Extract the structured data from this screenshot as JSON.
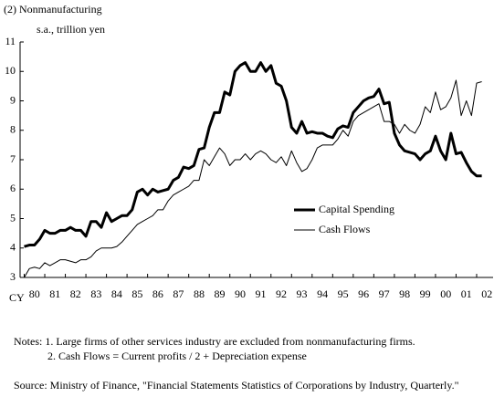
{
  "chart_data": {
    "type": "line",
    "title": "(2) Nonmanufacturing",
    "y_label": "s.a., trillion yen",
    "x_label": "CY",
    "x": [
      1980,
      1980.25,
      1980.5,
      1980.75,
      1981,
      1981.25,
      1981.5,
      1981.75,
      1982,
      1982.25,
      1982.5,
      1982.75,
      1983,
      1983.25,
      1983.5,
      1983.75,
      1984,
      1984.25,
      1984.5,
      1984.75,
      1985,
      1985.25,
      1985.5,
      1985.75,
      1986,
      1986.25,
      1986.5,
      1986.75,
      1987,
      1987.25,
      1987.5,
      1987.75,
      1988,
      1988.25,
      1988.5,
      1988.75,
      1989,
      1989.25,
      1989.5,
      1989.75,
      1990,
      1990.25,
      1990.5,
      1990.75,
      1991,
      1991.25,
      1991.5,
      1991.75,
      1992,
      1992.25,
      1992.5,
      1992.75,
      1993,
      1993.25,
      1993.5,
      1993.75,
      1994,
      1994.25,
      1994.5,
      1994.75,
      1995,
      1995.25,
      1995.5,
      1995.75,
      1996,
      1996.25,
      1996.5,
      1996.75,
      1997,
      1997.25,
      1997.5,
      1997.75,
      1998,
      1998.25,
      1998.5,
      1998.75,
      1999,
      1999.25,
      1999.5,
      1999.75,
      2000,
      2000.25,
      2000.5,
      2000.75,
      2001,
      2001.25,
      2001.5,
      2001.75,
      2002,
      2002.25
    ],
    "series": [
      {
        "name": "Capital Spending",
        "color": "#000000",
        "line_width": 3,
        "values": [
          4.05,
          4.1,
          4.1,
          4.3,
          4.6,
          4.5,
          4.5,
          4.6,
          4.6,
          4.7,
          4.6,
          4.6,
          4.4,
          4.9,
          4.9,
          4.7,
          5.2,
          4.9,
          5.0,
          5.1,
          5.1,
          5.3,
          5.9,
          6.0,
          5.8,
          6.0,
          5.9,
          5.95,
          6.0,
          6.3,
          6.4,
          6.75,
          6.7,
          6.8,
          7.35,
          7.4,
          8.1,
          8.6,
          8.6,
          9.3,
          9.2,
          10.0,
          10.2,
          10.3,
          10.0,
          10.0,
          10.3,
          10.0,
          10.2,
          9.6,
          9.5,
          9.0,
          8.1,
          7.9,
          8.3,
          7.9,
          7.95,
          7.9,
          7.9,
          7.8,
          7.75,
          8.05,
          8.15,
          8.1,
          8.6,
          8.8,
          9.0,
          9.1,
          9.15,
          9.4,
          8.9,
          8.95,
          7.9,
          7.5,
          7.3,
          7.25,
          7.2,
          7.0,
          7.2,
          7.3,
          7.8,
          7.3,
          7.0,
          7.9,
          7.2,
          7.25,
          6.9,
          6.6,
          6.45,
          6.45
        ]
      },
      {
        "name": "Cash Flows",
        "color": "#000000",
        "line_width": 1,
        "values": [
          3.0,
          3.3,
          3.35,
          3.3,
          3.5,
          3.4,
          3.5,
          3.6,
          3.6,
          3.55,
          3.5,
          3.6,
          3.6,
          3.7,
          3.9,
          4.0,
          4.0,
          4.0,
          4.05,
          4.2,
          4.4,
          4.6,
          4.8,
          4.9,
          5.0,
          5.1,
          5.3,
          5.3,
          5.6,
          5.8,
          5.9,
          6.0,
          6.1,
          6.3,
          6.3,
          7.0,
          6.8,
          7.1,
          7.4,
          7.2,
          6.8,
          7.0,
          7.0,
          7.2,
          7.0,
          7.2,
          7.3,
          7.2,
          7.0,
          6.9,
          7.1,
          6.8,
          7.3,
          6.9,
          6.6,
          6.7,
          7.0,
          7.4,
          7.5,
          7.5,
          7.5,
          7.7,
          8.0,
          7.8,
          8.3,
          8.5,
          8.6,
          8.7,
          8.8,
          8.9,
          8.3,
          8.3,
          8.2,
          7.9,
          8.2,
          8.0,
          7.9,
          8.2,
          8.8,
          8.6,
          9.3,
          8.7,
          8.8,
          9.1,
          9.7,
          8.5,
          9.0,
          8.5,
          9.6,
          9.65
        ]
      }
    ],
    "xlim": [
      1979.8,
      2002.8
    ],
    "xticks": [
      {
        "value": 1980,
        "label": "80"
      },
      {
        "value": 1981,
        "label": "81"
      },
      {
        "value": 1982,
        "label": "82"
      },
      {
        "value": 1983,
        "label": "83"
      },
      {
        "value": 1984,
        "label": "84"
      },
      {
        "value": 1985,
        "label": "85"
      },
      {
        "value": 1986,
        "label": "86"
      },
      {
        "value": 1987,
        "label": "87"
      },
      {
        "value": 1988,
        "label": "88"
      },
      {
        "value": 1989,
        "label": "89"
      },
      {
        "value": 1990,
        "label": "90"
      },
      {
        "value": 1991,
        "label": "91"
      },
      {
        "value": 1992,
        "label": "92"
      },
      {
        "value": 1993,
        "label": "93"
      },
      {
        "value": 1994,
        "label": "94"
      },
      {
        "value": 1995,
        "label": "95"
      },
      {
        "value": 1996,
        "label": "96"
      },
      {
        "value": 1997,
        "label": "97"
      },
      {
        "value": 1998,
        "label": "98"
      },
      {
        "value": 1999,
        "label": "99"
      },
      {
        "value": 2000,
        "label": "00"
      },
      {
        "value": 2001,
        "label": "01"
      },
      {
        "value": 2002,
        "label": "02"
      }
    ],
    "ylim": [
      3,
      11
    ],
    "yticks": [
      3,
      4,
      5,
      6,
      7,
      8,
      9,
      10,
      11
    ],
    "notes": [
      "Notes: 1. Large firms of other services industry are excluded from nonmanufacturing firms.",
      "2. Cash Flows = Current profits / 2 + Depreciation expense"
    ],
    "source": "Source: Ministry of Finance, \"Financial Statements Statistics of Corporations by Industry, Quarterly.\""
  }
}
